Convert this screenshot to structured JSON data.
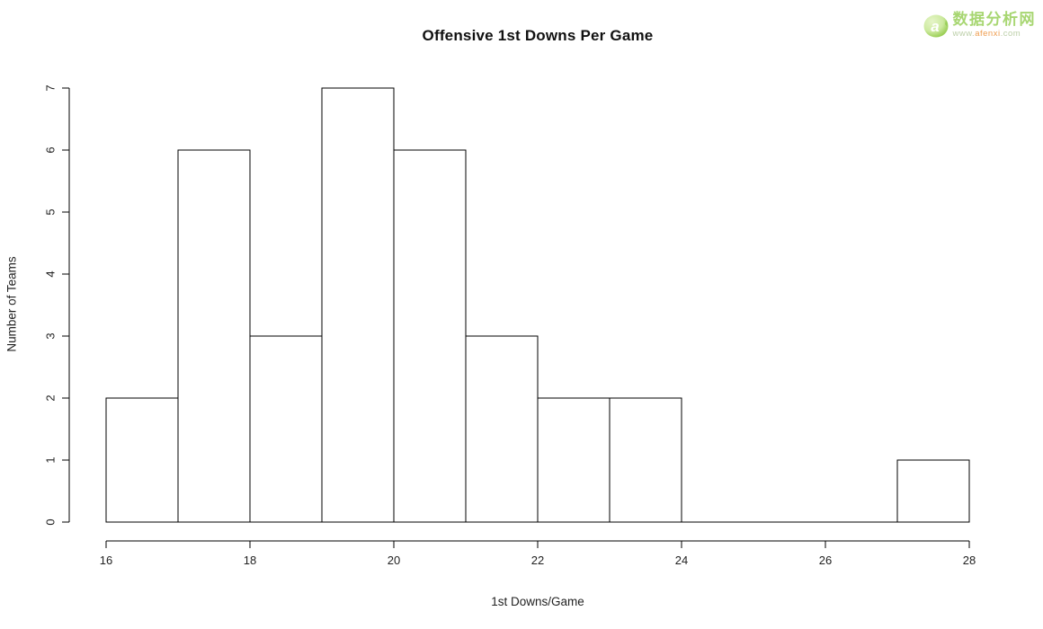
{
  "chart_data": {
    "type": "bar",
    "subtype": "histogram",
    "title": "Offensive 1st Downs Per Game",
    "xlabel": "1st Downs/Game",
    "ylabel": "Number of Teams",
    "bin_edges": [
      16,
      17,
      18,
      19,
      20,
      21,
      22,
      23,
      24,
      25,
      26,
      27,
      28
    ],
    "counts": [
      2,
      6,
      3,
      7,
      6,
      3,
      2,
      2,
      0,
      0,
      0,
      1
    ],
    "xlim": [
      16,
      28
    ],
    "ylim": [
      0,
      7
    ],
    "x_ticks": [
      16,
      18,
      20,
      22,
      24,
      26,
      28
    ],
    "y_ticks": [
      0,
      1,
      2,
      3,
      4,
      5,
      6,
      7
    ],
    "grid": false,
    "legend": null,
    "bar_fill": "#ffffff",
    "bar_stroke": "#000000",
    "axis_color": "#000000",
    "tick_label_color": "#222222"
  },
  "watermark": {
    "site_name": "数据分析网",
    "url_prefix": "www.",
    "url_highlight": "afenxi",
    "url_suffix": ".com",
    "logo_letter": "a",
    "colors": {
      "logo_green_light": "#d9efb2",
      "logo_green_dark": "#8cc63f",
      "name_green": "#a7d671",
      "url_gray_green": "#bccfa8",
      "url_orange": "#ef9d4f"
    }
  }
}
